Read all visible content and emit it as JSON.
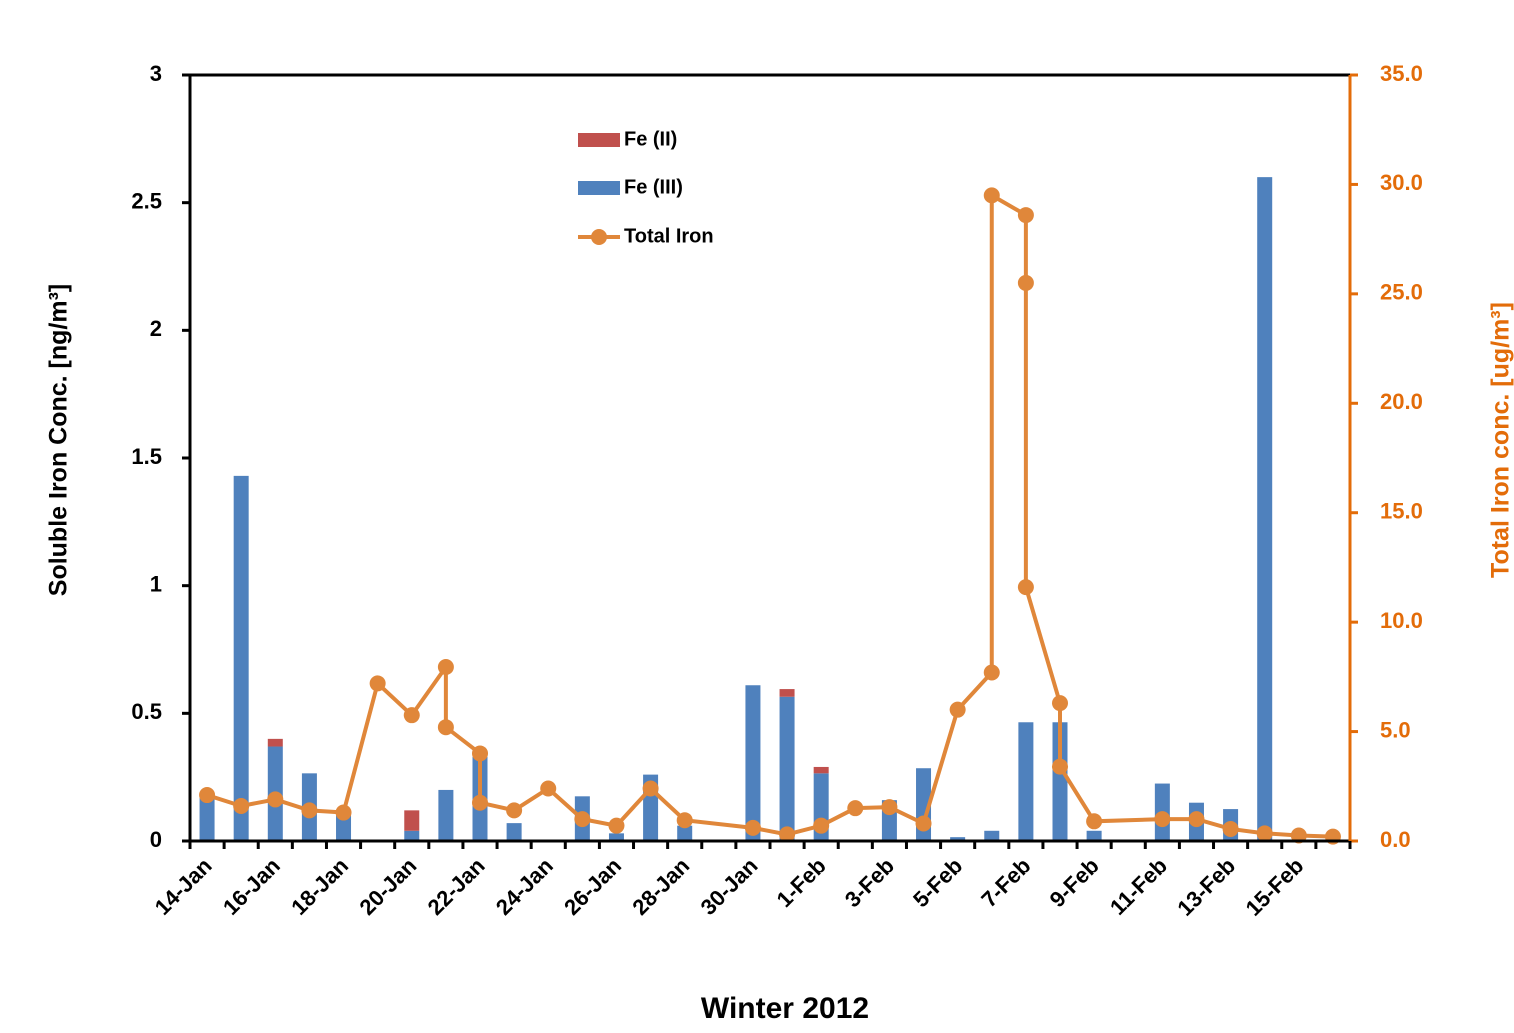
{
  "chart_data": {
    "type": "bar-line",
    "xlabel": "Winter 2012",
    "ylabel": "Soluble Iron Conc. [ng/m³]",
    "y2label": "Total Iron conc. [ug/m³]",
    "categories": [
      "14-Jan",
      null,
      "16-Jan",
      null,
      "18-Jan",
      null,
      "20-Jan",
      null,
      "22-Jan",
      null,
      "24-Jan",
      null,
      "26-Jan",
      null,
      "28-Jan",
      null,
      "30-Jan",
      null,
      "1-Feb",
      null,
      "3-Feb",
      null,
      "5-Feb",
      null,
      "7-Feb",
      null,
      "9-Feb",
      null,
      "11-Feb",
      null,
      "13-Feb",
      null,
      "15-Feb",
      null
    ],
    "ylim": [
      0,
      3
    ],
    "yticks": [
      0,
      0.5,
      1,
      1.5,
      2,
      2.5,
      3
    ],
    "y2lim": [
      0,
      35
    ],
    "y2ticks": [
      {
        "value": 0,
        "label": "0.0"
      },
      {
        "value": 5,
        "label": "5.0"
      },
      {
        "value": 10,
        "label": "10.0"
      },
      {
        "value": 15,
        "label": "15.0"
      },
      {
        "value": 20,
        "label": "20.0"
      },
      {
        "value": 25,
        "label": "25.0"
      },
      {
        "value": 30,
        "label": "30.0"
      },
      {
        "value": 35,
        "label": "35.0"
      }
    ],
    "series": [
      {
        "name": "Fe (II)",
        "color": "#c0504d",
        "values": [
          0,
          0,
          0.03,
          0,
          0,
          0,
          0.08,
          0,
          0,
          0,
          0,
          0,
          0,
          0,
          0,
          0,
          0,
          0.03,
          0.025,
          0,
          0,
          0,
          0,
          0,
          0,
          0,
          0,
          0,
          0,
          0,
          0,
          0,
          0,
          0
        ]
      },
      {
        "name": "Fe (III)",
        "color": "#4f81bd",
        "values": [
          0.17,
          1.43,
          0.37,
          0.265,
          0.1,
          0,
          0.04,
          0.2,
          0.33,
          0.07,
          0,
          0.175,
          0.03,
          0.26,
          0.06,
          0,
          0.61,
          0.565,
          0.265,
          0,
          0.16,
          0.285,
          0.015,
          0.04,
          0.465,
          0.465,
          0.04,
          0,
          0.225,
          0.15,
          0.125,
          2.6,
          0,
          0
        ]
      },
      {
        "name": "Total Iron",
        "color": "#e0873a",
        "axis": "y2",
        "x": [
          0,
          1,
          2,
          3,
          4,
          5,
          6,
          7,
          7,
          8,
          8,
          9,
          10,
          11,
          12,
          13,
          14,
          16,
          17,
          18,
          19,
          20,
          21,
          22,
          23,
          23,
          24,
          24,
          24,
          25,
          25,
          26,
          28,
          29,
          30,
          31,
          32,
          33
        ],
        "values": [
          2.1,
          1.6,
          1.9,
          1.4,
          1.3,
          7.2,
          5.75,
          7.95,
          5.2,
          4.0,
          1.75,
          1.4,
          2.4,
          1.0,
          0.7,
          2.4,
          0.95,
          0.6,
          0.3,
          0.7,
          1.5,
          1.55,
          0.8,
          6.0,
          7.7,
          29.5,
          28.6,
          25.5,
          11.6,
          6.3,
          3.4,
          0.9,
          1.0,
          1.0,
          0.55,
          0.35,
          0.25,
          0.2
        ]
      }
    ]
  }
}
